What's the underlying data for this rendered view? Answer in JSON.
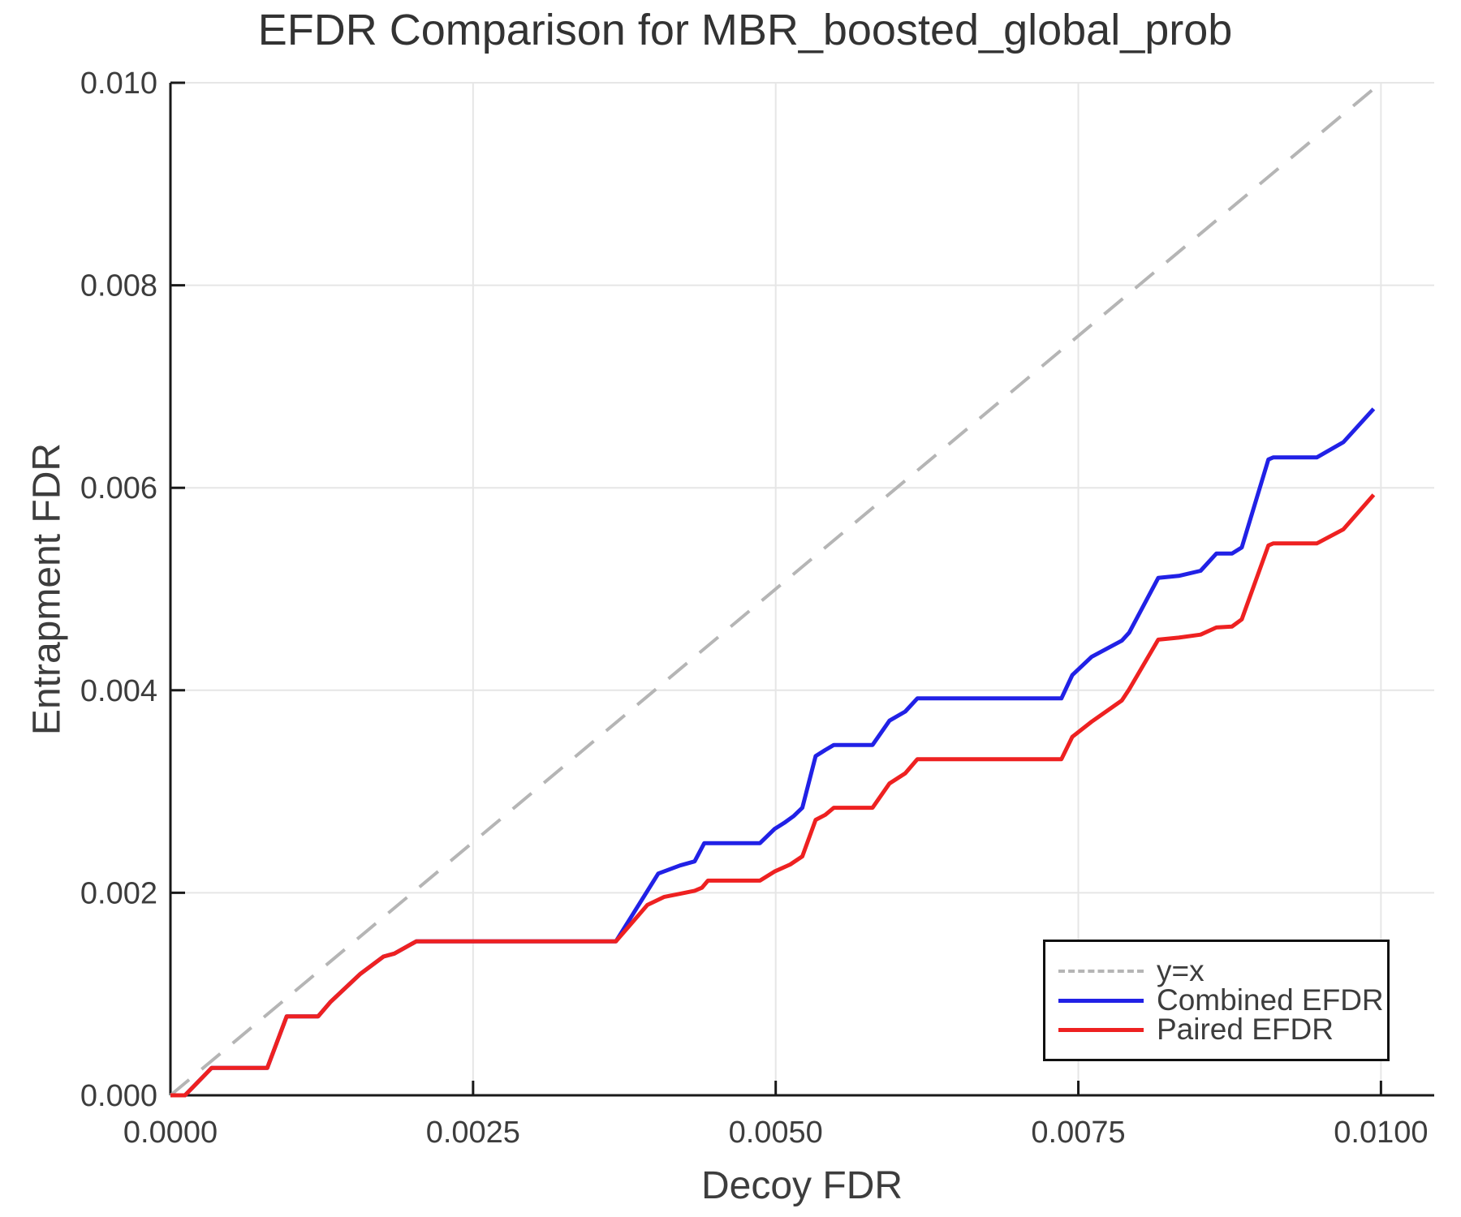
{
  "chart": {
    "title": "EFDR Comparison for MBR_boosted_global_prob",
    "xlabel": "Decoy FDR",
    "ylabel": "Entrapment FDR"
  },
  "chart_data": {
    "type": "line",
    "title": "EFDR Comparison for MBR_boosted_global_prob",
    "xlabel": "Decoy FDR",
    "ylabel": "Entrapment FDR",
    "xlim": [
      0,
      0.01044
    ],
    "ylim": [
      0,
      0.01
    ],
    "grid": true,
    "legend_position": "lower right",
    "x_ticks": {
      "values": [
        0,
        0.0025,
        0.005,
        0.0075,
        0.01
      ],
      "labels": [
        "0.0000",
        "0.0025",
        "0.0050",
        "0.0075",
        "0.0100"
      ]
    },
    "y_ticks": {
      "values": [
        0,
        0.002,
        0.004,
        0.006,
        0.008,
        0.01
      ],
      "labels": [
        "0.000",
        "0.002",
        "0.004",
        "0.006",
        "0.008",
        "0.010"
      ]
    },
    "colors": {
      "identity_line": "#b5b5b5",
      "combined": "#2121e6",
      "paired": "#ee2121",
      "grid": "#e6e6e6",
      "spine": "#1a1a1a",
      "text": "#3d3d3d"
    },
    "series": [
      {
        "name": "y=x",
        "style": "dashed",
        "color": "#b5b5b5",
        "width": 4,
        "points": [
          [
            0,
            0
          ],
          [
            0.00995,
            0.00995
          ]
        ]
      },
      {
        "name": "Combined EFDR",
        "style": "solid",
        "color": "#2121e6",
        "width": 5,
        "points": [
          [
            0.0,
            0.0
          ],
          [
            0.00012,
            0.0
          ],
          [
            0.00034,
            0.00027
          ],
          [
            0.0008,
            0.00027
          ],
          [
            0.00096,
            0.00078
          ],
          [
            0.00122,
            0.00078
          ],
          [
            0.00132,
            0.00092
          ],
          [
            0.00157,
            0.0012
          ],
          [
            0.00176,
            0.00137
          ],
          [
            0.00185,
            0.0014
          ],
          [
            0.00203,
            0.00152
          ],
          [
            0.00368,
            0.00152
          ],
          [
            0.00403,
            0.00219
          ],
          [
            0.00421,
            0.00227
          ],
          [
            0.00433,
            0.00231
          ],
          [
            0.00441,
            0.00249
          ],
          [
            0.00487,
            0.00249
          ],
          [
            0.00499,
            0.00263
          ],
          [
            0.00507,
            0.00269
          ],
          [
            0.00515,
            0.00276
          ],
          [
            0.00522,
            0.00284
          ],
          [
            0.00533,
            0.00335
          ],
          [
            0.00541,
            0.00341
          ],
          [
            0.00548,
            0.00346
          ],
          [
            0.0058,
            0.00346
          ],
          [
            0.00594,
            0.0037
          ],
          [
            0.00607,
            0.00379
          ],
          [
            0.00617,
            0.00392
          ],
          [
            0.00736,
            0.00392
          ],
          [
            0.00745,
            0.00415
          ],
          [
            0.00761,
            0.00433
          ],
          [
            0.00786,
            0.00449
          ],
          [
            0.00792,
            0.00457
          ],
          [
            0.00816,
            0.00511
          ],
          [
            0.00833,
            0.00513
          ],
          [
            0.00851,
            0.00518
          ],
          [
            0.00864,
            0.00535
          ],
          [
            0.00877,
            0.00535
          ],
          [
            0.00885,
            0.00541
          ],
          [
            0.00907,
            0.00628
          ],
          [
            0.00911,
            0.0063
          ],
          [
            0.00947,
            0.0063
          ],
          [
            0.00969,
            0.00645
          ],
          [
            0.00994,
            0.00678
          ]
        ]
      },
      {
        "name": "Paired EFDR",
        "style": "solid",
        "color": "#ee2121",
        "width": 5,
        "points": [
          [
            0.0,
            0.0
          ],
          [
            0.00012,
            0.0
          ],
          [
            0.00034,
            0.00027
          ],
          [
            0.0008,
            0.00027
          ],
          [
            0.00096,
            0.00078
          ],
          [
            0.00122,
            0.00078
          ],
          [
            0.00132,
            0.00092
          ],
          [
            0.00157,
            0.0012
          ],
          [
            0.00176,
            0.00137
          ],
          [
            0.00185,
            0.0014
          ],
          [
            0.00203,
            0.00152
          ],
          [
            0.00368,
            0.00152
          ],
          [
            0.00394,
            0.00188
          ],
          [
            0.00408,
            0.00196
          ],
          [
            0.00421,
            0.00199
          ],
          [
            0.00433,
            0.00202
          ],
          [
            0.00439,
            0.00205
          ],
          [
            0.00444,
            0.00212
          ],
          [
            0.00487,
            0.00212
          ],
          [
            0.00499,
            0.00221
          ],
          [
            0.00512,
            0.00228
          ],
          [
            0.00522,
            0.00236
          ],
          [
            0.00533,
            0.00272
          ],
          [
            0.00541,
            0.00277
          ],
          [
            0.00548,
            0.00284
          ],
          [
            0.0058,
            0.00284
          ],
          [
            0.00594,
            0.00308
          ],
          [
            0.00607,
            0.00318
          ],
          [
            0.00617,
            0.00332
          ],
          [
            0.00736,
            0.00332
          ],
          [
            0.00745,
            0.00354
          ],
          [
            0.00761,
            0.00369
          ],
          [
            0.00786,
            0.0039
          ],
          [
            0.00792,
            0.00401
          ],
          [
            0.00816,
            0.0045
          ],
          [
            0.00833,
            0.00452
          ],
          [
            0.00851,
            0.00455
          ],
          [
            0.00864,
            0.00462
          ],
          [
            0.00877,
            0.00463
          ],
          [
            0.00885,
            0.0047
          ],
          [
            0.00907,
            0.00543
          ],
          [
            0.00911,
            0.00545
          ],
          [
            0.00947,
            0.00545
          ],
          [
            0.00969,
            0.00559
          ],
          [
            0.00994,
            0.00593
          ]
        ]
      }
    ]
  }
}
